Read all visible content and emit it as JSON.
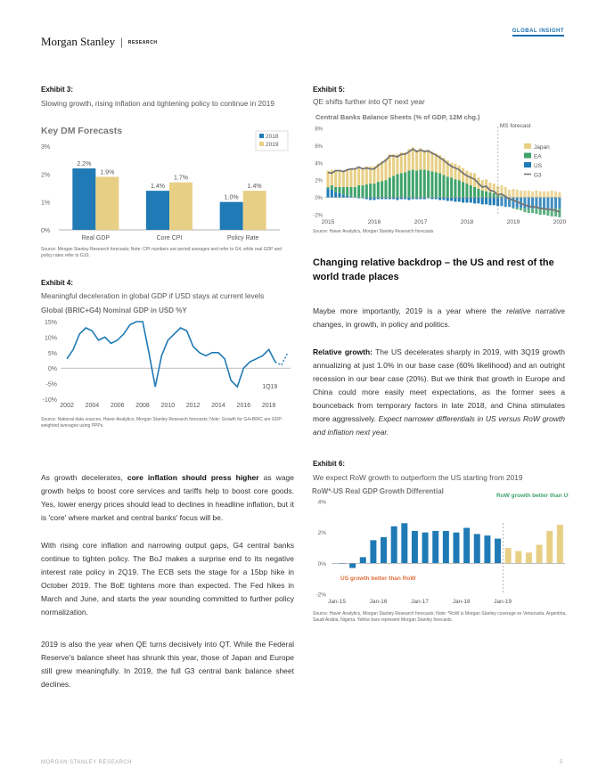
{
  "header": {
    "brand": "Morgan Stanley",
    "section": "RESEARCH",
    "series": "GLOBAL INSIGHT"
  },
  "exhibit3": {
    "label": "Exhibit 3:",
    "subtitle": "Slowing growth, rising inflation and tightening policy to continue in 2019",
    "source": "Source: Morgan Stanley Research forecasts; Note: CPI numbers are period averages and refer to G4, while real GDP and policy rates refer to G10.",
    "chart_data": {
      "type": "bar",
      "title": "Key DM Forecasts",
      "categories": [
        "Real GDP",
        "Core CPI",
        "Policy Rate"
      ],
      "series": [
        {
          "name": "2018",
          "values": [
            2.2,
            1.4,
            1.0
          ],
          "labels": [
            "2.2%",
            "1.4%",
            "1.0%"
          ],
          "color": "#1f7ab5"
        },
        {
          "name": "2019",
          "values": [
            1.9,
            1.7,
            1.4
          ],
          "labels": [
            "1.9%",
            "1.7%",
            "1.4%"
          ],
          "color": "#e8cf86"
        }
      ],
      "ylim": [
        0,
        3
      ],
      "yticks": [
        "0%",
        "1%",
        "2%",
        "3%"
      ],
      "legend": "top-right"
    }
  },
  "exhibit4": {
    "label": "Exhibit 4:",
    "subtitle": "Meaningful deceleration in global GDP if USD stays at current levels",
    "source": "Source: National data sources, Haver Analytics, Morgan Stanley Research forecasts; Note: Growth for G4+BRIC are GDP-weighted averages using PPPs.",
    "chart_data": {
      "type": "line",
      "title": "Global (BRIC+G4) Nominal GDP in USD %Y",
      "x": [
        2002.0,
        2002.5,
        2003.0,
        2003.5,
        2004.0,
        2004.5,
        2005.0,
        2005.5,
        2006.0,
        2006.5,
        2007.0,
        2007.5,
        2008.0,
        2008.5,
        2009.0,
        2009.5,
        2010.0,
        2010.5,
        2011.0,
        2011.5,
        2012.0,
        2012.5,
        2013.0,
        2013.5,
        2014.0,
        2014.5,
        2015.0,
        2015.5,
        2016.0,
        2016.5,
        2017.0,
        2017.5,
        2018.0,
        2018.5,
        2019.0,
        2019.5
      ],
      "y": [
        3,
        6,
        11,
        13,
        12,
        9,
        10,
        8,
        9,
        11,
        14,
        15,
        15,
        5,
        -6,
        4,
        9,
        11,
        13,
        12,
        7,
        5,
        4,
        5,
        5,
        3,
        -4,
        -6,
        0,
        2,
        3,
        4,
        6,
        2,
        1,
        5
      ],
      "forecast_from": 2018.5,
      "annotation": "1Q19",
      "ylim": [
        -10,
        15
      ],
      "yticks": [
        "15%",
        "10%",
        "5%",
        "0%",
        "-5%",
        "-10%"
      ],
      "xticks": [
        "2002",
        "2004",
        "2006",
        "2008",
        "2010",
        "2012",
        "2014",
        "2016",
        "2018"
      ]
    }
  },
  "exhibit5": {
    "label": "Exhibit 5:",
    "subtitle": "QE shifts further into QT next year",
    "source": "Source: Haver Analytics, Morgan Stanley Research forecasts",
    "chart_data": {
      "type": "bar",
      "title": "Central Banks Balance Sheets (% of GDP, 12M chg.)",
      "annotation": "MS forecast",
      "forecast_start": 2018.67,
      "x_start": 2015.0,
      "x_step": 0.0833,
      "series": [
        {
          "name": "Japan",
          "color": "#e8cf86",
          "values": [
            1.9,
            1.8,
            2.0,
            1.9,
            1.8,
            2.0,
            2.1,
            2.1,
            2.2,
            2.0,
            2.1,
            2.0,
            2.0,
            2.1,
            2.3,
            2.5,
            2.7,
            2.5,
            2.3,
            2.4,
            2.3,
            2.5,
            2.6,
            2.4,
            2.5,
            2.3,
            2.4,
            2.3,
            2.2,
            2.1,
            2.0,
            1.9,
            1.7,
            1.8,
            1.7,
            1.6,
            1.5,
            1.5,
            1.6,
            1.3,
            1.2,
            1.4,
            1.1,
            1.1,
            1.0,
            1.2,
            1.0,
            0.9,
            1.0,
            0.9,
            0.8,
            0.8,
            0.8,
            0.7,
            0.8,
            0.7,
            0.7,
            0.7,
            0.8,
            0.7,
            0.6
          ]
        },
        {
          "name": "EA",
          "color": "#3fa36b",
          "values": [
            0.2,
            0.5,
            0.6,
            0.7,
            0.9,
            1.0,
            1.1,
            1.2,
            1.4,
            1.4,
            1.5,
            1.6,
            1.6,
            1.8,
            1.9,
            2.0,
            2.3,
            2.5,
            2.7,
            2.8,
            2.9,
            3.1,
            3.2,
            3.1,
            3.2,
            3.2,
            3.1,
            3.0,
            2.9,
            2.8,
            2.6,
            2.4,
            2.3,
            2.1,
            2.0,
            1.8,
            1.6,
            1.4,
            1.2,
            1.0,
            0.8,
            0.7,
            0.6,
            0.5,
            0.3,
            0.2,
            0.2,
            0.0,
            -0.1,
            -0.2,
            -0.3,
            -0.4,
            -0.5,
            -0.5,
            -0.6,
            -0.7,
            -0.7,
            -0.8,
            -0.9,
            -0.9,
            -1.0
          ]
        },
        {
          "name": "US",
          "color": "#1f7ab5",
          "values": [
            1.0,
            0.9,
            0.6,
            0.5,
            0.3,
            0.2,
            0.1,
            0.0,
            -0.1,
            -0.1,
            -0.2,
            -0.3,
            -0.3,
            -0.2,
            -0.2,
            -0.2,
            -0.2,
            -0.2,
            -0.3,
            -0.2,
            -0.2,
            -0.3,
            -0.2,
            -0.2,
            -0.2,
            -0.2,
            -0.1,
            -0.2,
            -0.2,
            -0.3,
            -0.3,
            -0.4,
            -0.4,
            -0.5,
            -0.5,
            -0.6,
            -0.6,
            -0.6,
            -0.7,
            -0.7,
            -0.8,
            -0.8,
            -0.9,
            -0.9,
            -1.0,
            -1.0,
            -1.1,
            -1.1,
            -1.2,
            -1.2,
            -1.2,
            -1.3,
            -1.3,
            -1.3,
            -1.3,
            -1.3,
            -1.3,
            -1.3,
            -1.3,
            -1.3,
            -1.3
          ]
        },
        {
          "name": "G3",
          "color": "#777777",
          "values": [
            2.9,
            2.8,
            3.1,
            3.1,
            3.0,
            3.2,
            3.3,
            3.3,
            3.5,
            3.3,
            3.4,
            3.3,
            3.3,
            3.7,
            4.0,
            4.3,
            4.8,
            4.8,
            4.7,
            5.0,
            5.0,
            5.3,
            5.6,
            5.3,
            5.5,
            5.3,
            5.4,
            5.1,
            4.9,
            4.6,
            4.3,
            3.9,
            3.6,
            3.4,
            3.2,
            2.8,
            2.5,
            2.3,
            2.1,
            1.6,
            1.2,
            1.3,
            0.8,
            0.7,
            0.3,
            0.4,
            0.1,
            -0.2,
            -0.3,
            -0.5,
            -0.7,
            -0.9,
            -1.0,
            -1.1,
            -1.1,
            -1.3,
            -1.3,
            -1.4,
            -1.4,
            -1.5,
            -1.7
          ]
        }
      ],
      "ylim": [
        -2,
        8
      ],
      "yticks": [
        "8%",
        "6%",
        "4%",
        "2%",
        "0%",
        "-2%"
      ],
      "xticks": [
        "2015",
        "2016",
        "2017",
        "2018",
        "2019",
        "2020"
      ],
      "legend": "right"
    }
  },
  "section": {
    "heading": "Changing relative backdrop – the US and rest of the world trade places",
    "p1_a": "Maybe more importantly, 2019 is a year where the ",
    "p1_em": "relative",
    "p1_b": " narrative changes, in growth, in policy and politics.",
    "p2_bold": "Relative growth:",
    "p2_text": " The US decelerates sharply in 2019, with 3Q19 growth annualizing at just 1.0% in our base case (60% likelihood) and an outright recession in our bear case (20%). But we think that growth in Europe and China could more easily meet expectations, as the former sees a bounceback from temporary factors in late 2018, and China stimulates more aggressively. ",
    "p2_em": "Expect narrower differentials in US versus RoW growth and inflation next year."
  },
  "exhibit6": {
    "label": "Exhibit 6:",
    "subtitle": "We expect RoW growth to outperform the US starting from 2019",
    "source": "Source: Haver Analytics, Morgan Stanley Research forecasts; Note: *RoW is Morgan Stanley coverage ex Venezuela, Argentina, Saudi Arabia, Nigeria. Yellow bars represent Morgan Stanley forecasts.",
    "chart_data": {
      "type": "bar",
      "title": "RoW*-US Real GDP Growth Differential",
      "annotation_up": "RoW growth better than US",
      "annotation_down": "US growth better than RoW",
      "categories": [
        "1Q15",
        "2Q15",
        "3Q15",
        "4Q15",
        "1Q16",
        "2Q16",
        "3Q16",
        "4Q16",
        "1Q17",
        "2Q17",
        "3Q17",
        "4Q17",
        "1Q18",
        "2Q18",
        "3Q18",
        "4Q18",
        "1Q19",
        "2Q19",
        "3Q19",
        "4Q19",
        "1Q20",
        "2Q20"
      ],
      "values": [
        0.0,
        -0.3,
        0.4,
        1.5,
        1.7,
        2.4,
        2.6,
        2.1,
        2.0,
        2.1,
        2.1,
        2.0,
        2.3,
        1.9,
        1.8,
        1.6,
        1.0,
        0.8,
        0.7,
        1.2,
        2.1,
        2.5
      ],
      "forecast_from_index": 16,
      "ylim": [
        -2,
        4
      ],
      "yticks": [
        "4%",
        "2%",
        "0%",
        "-2%"
      ],
      "xticks": [
        "Jan-15",
        "Jan-16",
        "Jan-17",
        "Jan-18",
        "Jan-19"
      ]
    }
  },
  "left_text": {
    "p1_a": "As growth decelerates, ",
    "p1_bold": "core inflation should press higher",
    "p1_b": " as wage growth helps to boost core services and tariffs help to boost core goods. Yes, lower energy prices should lead to declines in headline inflation, but it is 'core' where market and central banks' focus will be.",
    "p2": "With rising core inflation and narrowing output gaps, G4 central banks continue to tighten policy. The BoJ makes a surprise end to its negative interest rate policy in 2Q19. The ECB sets the stage for a 15bp hike in October 2019. The BoE tightens more than expected. The Fed hikes in March and June, and starts the year sounding committed to further policy normalization.",
    "p3": "2019 is also the year when QE turns decisively into QT. While the Federal Reserve's balance sheet has shrunk this year, those of Japan and Europe still grew meaningfully. In 2019, the full G3 central bank balance sheet declines."
  },
  "footer": {
    "left": "MORGAN STANLEY RESEARCH",
    "page": "5"
  }
}
